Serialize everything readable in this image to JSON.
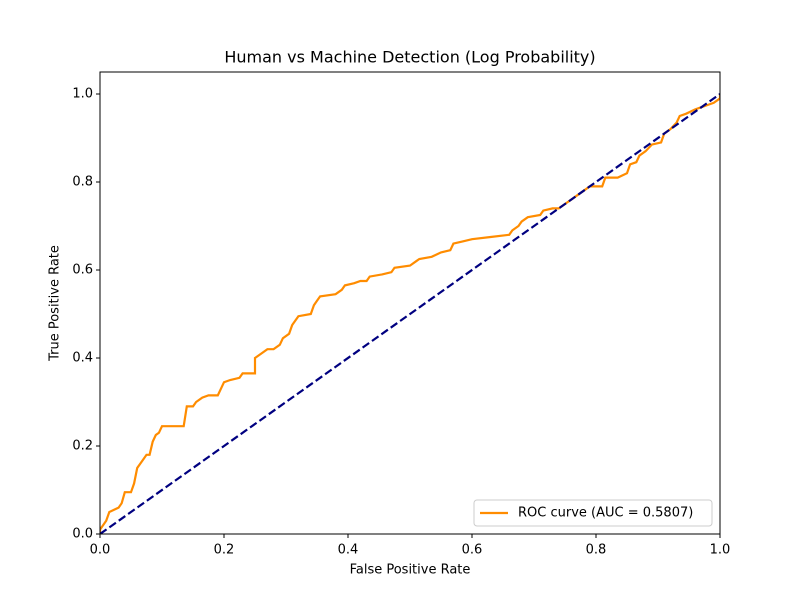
{
  "chart_data": {
    "type": "line",
    "title": "Human vs Machine Detection (Log Probability)",
    "xlabel": "False Positive Rate",
    "ylabel": "True Positive Rate",
    "xlim": [
      0,
      1
    ],
    "ylim": [
      0,
      1.05
    ],
    "xticks": [
      {
        "value": 0,
        "label": "0.0"
      },
      0.2,
      0.4,
      0.6,
      0.8,
      {
        "value": 1,
        "label": "1.0"
      }
    ],
    "yticks": [
      {
        "value": 0,
        "label": "0.0"
      },
      0.2,
      0.4,
      0.6,
      0.8,
      {
        "value": 1,
        "label": "1.0"
      }
    ],
    "legend": "lower right",
    "series": [
      {
        "name": "ROC curve (AUC = 0.5807)",
        "color": "darkorange",
        "x": [
          0,
          0,
          0.01,
          0.015,
          0.03,
          0.035,
          0.04,
          0.05,
          0.055,
          0.06,
          0.065,
          0.07,
          0.075,
          0.08,
          0.085,
          0.09,
          0.095,
          0.1,
          0.135,
          0.14,
          0.15,
          0.155,
          0.165,
          0.175,
          0.19,
          0.195,
          0.2,
          0.21,
          0.225,
          0.23,
          0.25,
          0.25,
          0.26,
          0.27,
          0.28,
          0.29,
          0.295,
          0.305,
          0.31,
          0.315,
          0.32,
          0.34,
          0.345,
          0.35,
          0.355,
          0.38,
          0.39,
          0.395,
          0.41,
          0.42,
          0.43,
          0.435,
          0.455,
          0.47,
          0.475,
          0.5,
          0.51,
          0.515,
          0.535,
          0.55,
          0.565,
          0.57,
          0.585,
          0.6,
          0.63,
          0.66,
          0.665,
          0.675,
          0.68,
          0.69,
          0.71,
          0.715,
          0.73,
          0.74,
          0.75,
          0.76,
          0.77,
          0.78,
          0.79,
          0.81,
          0.815,
          0.835,
          0.85,
          0.855,
          0.865,
          0.87,
          0.88,
          0.89,
          0.905,
          0.91,
          0.92,
          0.93,
          0.935,
          0.945,
          0.96,
          0.97,
          0.98,
          0.99,
          1,
          1
        ],
        "values": [
          0,
          0.01,
          0.03,
          0.05,
          0.06,
          0.07,
          0.095,
          0.095,
          0.115,
          0.15,
          0.16,
          0.17,
          0.18,
          0.18,
          0.21,
          0.225,
          0.23,
          0.245,
          0.245,
          0.29,
          0.29,
          0.3,
          0.31,
          0.315,
          0.315,
          0.33,
          0.345,
          0.35,
          0.355,
          0.365,
          0.365,
          0.4,
          0.41,
          0.42,
          0.42,
          0.43,
          0.445,
          0.455,
          0.475,
          0.485,
          0.495,
          0.5,
          0.52,
          0.53,
          0.54,
          0.545,
          0.555,
          0.565,
          0.57,
          0.575,
          0.575,
          0.585,
          0.59,
          0.595,
          0.605,
          0.61,
          0.62,
          0.625,
          0.63,
          0.64,
          0.645,
          0.66,
          0.665,
          0.67,
          0.675,
          0.68,
          0.69,
          0.7,
          0.71,
          0.72,
          0.725,
          0.735,
          0.74,
          0.74,
          0.75,
          0.76,
          0.77,
          0.78,
          0.79,
          0.79,
          0.81,
          0.81,
          0.82,
          0.84,
          0.845,
          0.86,
          0.87,
          0.885,
          0.89,
          0.91,
          0.92,
          0.935,
          0.95,
          0.955,
          0.965,
          0.97,
          0.975,
          0.98,
          0.99,
          1
        ]
      }
    ],
    "reference_line": {
      "color": "navy",
      "dashed": true,
      "x": [
        0,
        1
      ],
      "values": [
        0,
        1
      ]
    }
  }
}
